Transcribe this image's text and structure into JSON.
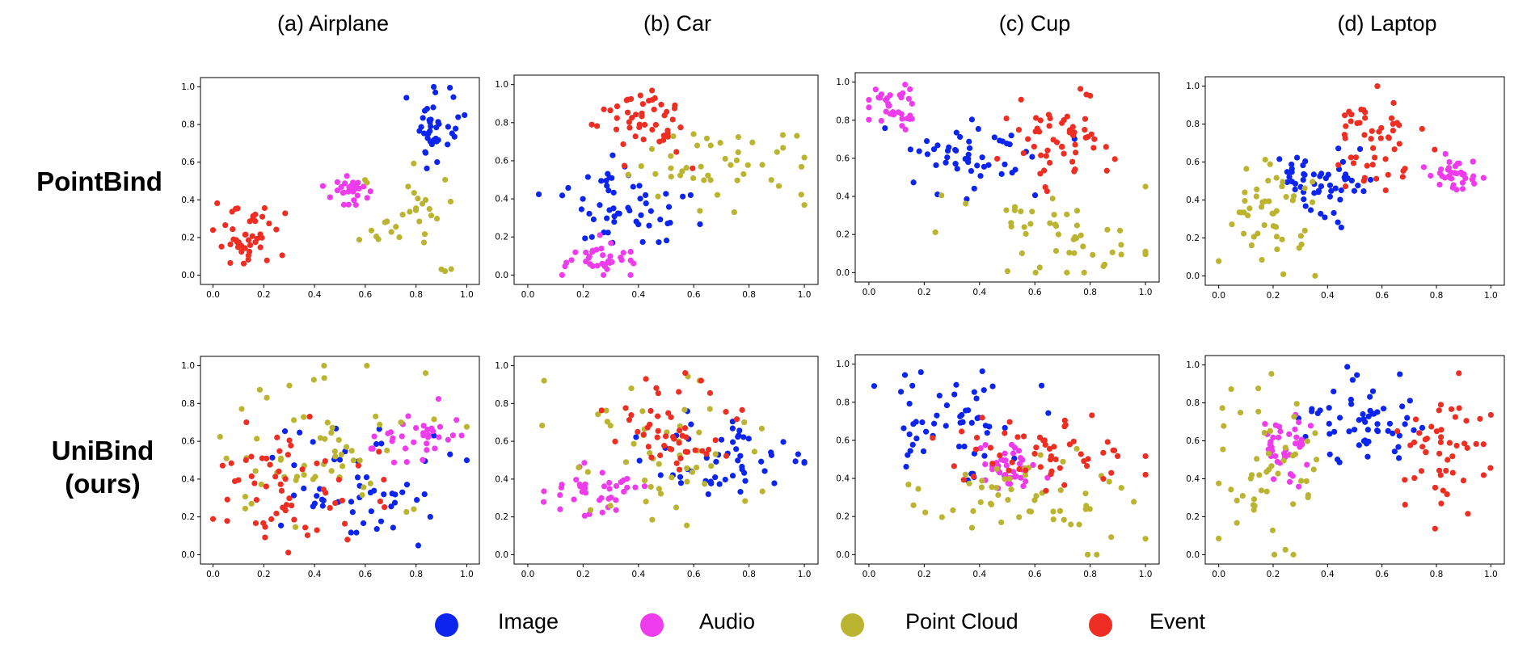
{
  "colors": {
    "Image": "#0b24ee",
    "Audio": "#ee3cec",
    "Point Cloud": "#bbb431",
    "Event": "#ee2e22"
  },
  "row_labels": [
    {
      "lines": [
        "PointBind"
      ]
    },
    {
      "lines": [
        "UniBind",
        "(ours)"
      ]
    }
  ],
  "legend": [
    {
      "label": "Image",
      "color": "#0b24ee"
    },
    {
      "label": "Audio",
      "color": "#ee3cec"
    },
    {
      "label": "Point Cloud",
      "color": "#bbb431"
    },
    {
      "label": "Event",
      "color": "#ee2e22"
    }
  ],
  "chart_data": [
    {
      "type": "scatter",
      "title": "(a) Airplane",
      "row": "PointBind",
      "xlim": [
        0,
        1
      ],
      "ylim": [
        0,
        1
      ],
      "xticks": [
        "0.0",
        "0.2",
        "0.4",
        "0.6",
        "0.8",
        "1.0"
      ],
      "yticks": [
        "0.0",
        "0.2",
        "0.4",
        "0.6",
        "0.8",
        "1.0"
      ],
      "series": [
        {
          "name": "Image",
          "cluster": {
            "cx": 0.87,
            "cy": 0.78,
            "sx": 0.055,
            "sy": 0.11,
            "n": 40
          }
        },
        {
          "name": "Audio",
          "cluster": {
            "cx": 0.53,
            "cy": 0.46,
            "sx": 0.04,
            "sy": 0.04,
            "n": 30
          }
        },
        {
          "name": "Point Cloud",
          "cluster": {
            "cx": 0.82,
            "cy": 0.28,
            "sx": 0.09,
            "sy": 0.13,
            "n": 32
          }
        },
        {
          "name": "Event",
          "cluster": {
            "cx": 0.14,
            "cy": 0.21,
            "sx": 0.06,
            "sy": 0.09,
            "n": 45
          }
        }
      ]
    },
    {
      "type": "scatter",
      "title": "(b) Car",
      "row": "PointBind",
      "xlim": [
        0,
        1
      ],
      "ylim": [
        0,
        1
      ],
      "xticks": [
        "0.0",
        "0.2",
        "0.4",
        "0.6",
        "0.8",
        "1.0"
      ],
      "yticks": [
        "0.0",
        "0.2",
        "0.4",
        "0.6",
        "0.8",
        "1.0"
      ],
      "series": [
        {
          "name": "Image",
          "cluster": {
            "cx": 0.33,
            "cy": 0.35,
            "sx": 0.13,
            "sy": 0.09,
            "n": 55
          }
        },
        {
          "name": "Audio",
          "cluster": {
            "cx": 0.27,
            "cy": 0.08,
            "sx": 0.06,
            "sy": 0.04,
            "n": 35
          }
        },
        {
          "name": "Point Cloud",
          "cluster": {
            "cx": 0.7,
            "cy": 0.57,
            "sx": 0.15,
            "sy": 0.1,
            "n": 45
          }
        },
        {
          "name": "Event",
          "cluster": {
            "cx": 0.42,
            "cy": 0.82,
            "sx": 0.08,
            "sy": 0.08,
            "n": 48
          }
        }
      ]
    },
    {
      "type": "scatter",
      "title": "(c) Cup",
      "row": "PointBind",
      "xlim": [
        0,
        1
      ],
      "ylim": [
        0,
        1
      ],
      "xticks": [
        "0.0",
        "0.2",
        "0.4",
        "0.6",
        "0.8",
        "1.0"
      ],
      "yticks": [
        "0.0",
        "0.2",
        "0.4",
        "0.6",
        "0.8",
        "1.0"
      ],
      "series": [
        {
          "name": "Image",
          "cluster": {
            "cx": 0.38,
            "cy": 0.63,
            "sx": 0.12,
            "sy": 0.09,
            "n": 50
          }
        },
        {
          "name": "Audio",
          "cluster": {
            "cx": 0.09,
            "cy": 0.88,
            "sx": 0.05,
            "sy": 0.05,
            "n": 35
          }
        },
        {
          "name": "Point Cloud",
          "cluster": {
            "cx": 0.7,
            "cy": 0.2,
            "sx": 0.16,
            "sy": 0.12,
            "n": 48
          }
        },
        {
          "name": "Event",
          "cluster": {
            "cx": 0.67,
            "cy": 0.7,
            "sx": 0.09,
            "sy": 0.1,
            "n": 55
          }
        }
      ]
    },
    {
      "type": "scatter",
      "title": "(d) Laptop",
      "row": "PointBind",
      "xlim": [
        0,
        1
      ],
      "ylim": [
        0,
        1
      ],
      "xticks": [
        "0.0",
        "0.2",
        "0.4",
        "0.6",
        "0.8",
        "1.0"
      ],
      "yticks": [
        "0.0",
        "0.2",
        "0.4",
        "0.6",
        "0.8",
        "1.0"
      ],
      "series": [
        {
          "name": "Image",
          "cluster": {
            "cx": 0.38,
            "cy": 0.47,
            "sx": 0.08,
            "sy": 0.09,
            "n": 55
          }
        },
        {
          "name": "Audio",
          "cluster": {
            "cx": 0.88,
            "cy": 0.53,
            "sx": 0.05,
            "sy": 0.04,
            "n": 35
          }
        },
        {
          "name": "Point Cloud",
          "cluster": {
            "cx": 0.2,
            "cy": 0.3,
            "sx": 0.09,
            "sy": 0.14,
            "n": 48
          }
        },
        {
          "name": "Event",
          "cluster": {
            "cx": 0.58,
            "cy": 0.7,
            "sx": 0.08,
            "sy": 0.12,
            "n": 50
          }
        }
      ]
    },
    {
      "type": "scatter",
      "title": "",
      "row": "UniBind (ours)",
      "xlim": [
        0,
        1
      ],
      "ylim": [
        0,
        1
      ],
      "xticks": [
        "0.0",
        "0.2",
        "0.4",
        "0.6",
        "0.8",
        "1.0"
      ],
      "yticks": [
        "0.0",
        "0.2",
        "0.4",
        "0.6",
        "0.8",
        "1.0"
      ],
      "series": [
        {
          "name": "Image",
          "cluster": {
            "cx": 0.6,
            "cy": 0.38,
            "sx": 0.17,
            "sy": 0.16,
            "n": 55
          }
        },
        {
          "name": "Audio",
          "cluster": {
            "cx": 0.8,
            "cy": 0.62,
            "sx": 0.09,
            "sy": 0.06,
            "n": 35
          }
        },
        {
          "name": "Point Cloud",
          "cluster": {
            "cx": 0.42,
            "cy": 0.55,
            "sx": 0.22,
            "sy": 0.22,
            "n": 60
          }
        },
        {
          "name": "Event",
          "cluster": {
            "cx": 0.3,
            "cy": 0.38,
            "sx": 0.15,
            "sy": 0.15,
            "n": 60
          }
        }
      ]
    },
    {
      "type": "scatter",
      "title": "",
      "row": "UniBind (ours)",
      "xlim": [
        0,
        1
      ],
      "ylim": [
        0,
        1
      ],
      "xticks": [
        "0.0",
        "0.2",
        "0.4",
        "0.6",
        "0.8",
        "1.0"
      ],
      "yticks": [
        "0.0",
        "0.2",
        "0.4",
        "0.6",
        "0.8",
        "1.0"
      ],
      "series": [
        {
          "name": "Image",
          "cluster": {
            "cx": 0.72,
            "cy": 0.5,
            "sx": 0.12,
            "sy": 0.12,
            "n": 52
          }
        },
        {
          "name": "Audio",
          "cluster": {
            "cx": 0.24,
            "cy": 0.34,
            "sx": 0.09,
            "sy": 0.07,
            "n": 38
          }
        },
        {
          "name": "Point Cloud",
          "cluster": {
            "cx": 0.45,
            "cy": 0.55,
            "sx": 0.18,
            "sy": 0.2,
            "n": 50
          }
        },
        {
          "name": "Event",
          "cluster": {
            "cx": 0.52,
            "cy": 0.66,
            "sx": 0.12,
            "sy": 0.12,
            "n": 50
          }
        }
      ]
    },
    {
      "type": "scatter",
      "title": "",
      "row": "UniBind (ours)",
      "xlim": [
        0,
        1
      ],
      "ylim": [
        0,
        1
      ],
      "xticks": [
        "0.0",
        "0.2",
        "0.4",
        "0.6",
        "0.8",
        "1.0"
      ],
      "yticks": [
        "0.0",
        "0.2",
        "0.4",
        "0.6",
        "0.8",
        "1.0"
      ],
      "series": [
        {
          "name": "Image",
          "cluster": {
            "cx": 0.3,
            "cy": 0.72,
            "sx": 0.13,
            "sy": 0.13,
            "n": 55
          }
        },
        {
          "name": "Audio",
          "cluster": {
            "cx": 0.5,
            "cy": 0.45,
            "sx": 0.06,
            "sy": 0.06,
            "n": 40
          }
        },
        {
          "name": "Point Cloud",
          "cluster": {
            "cx": 0.6,
            "cy": 0.28,
            "sx": 0.18,
            "sy": 0.13,
            "n": 55
          }
        },
        {
          "name": "Event",
          "cluster": {
            "cx": 0.65,
            "cy": 0.55,
            "sx": 0.16,
            "sy": 0.08,
            "n": 55
          }
        }
      ]
    },
    {
      "type": "scatter",
      "title": "",
      "row": "UniBind (ours)",
      "xlim": [
        0,
        1
      ],
      "ylim": [
        0,
        1
      ],
      "xticks": [
        "0.0",
        "0.2",
        "0.4",
        "0.6",
        "0.8",
        "1.0"
      ],
      "yticks": [
        "0.0",
        "0.2",
        "0.4",
        "0.6",
        "0.8",
        "1.0"
      ],
      "series": [
        {
          "name": "Image",
          "cluster": {
            "cx": 0.55,
            "cy": 0.68,
            "sx": 0.1,
            "sy": 0.14,
            "n": 58
          }
        },
        {
          "name": "Audio",
          "cluster": {
            "cx": 0.24,
            "cy": 0.55,
            "sx": 0.05,
            "sy": 0.1,
            "n": 38
          }
        },
        {
          "name": "Point Cloud",
          "cluster": {
            "cx": 0.2,
            "cy": 0.45,
            "sx": 0.1,
            "sy": 0.22,
            "n": 50
          }
        },
        {
          "name": "Event",
          "cluster": {
            "cx": 0.82,
            "cy": 0.55,
            "sx": 0.08,
            "sy": 0.18,
            "n": 50
          }
        }
      ]
    }
  ]
}
